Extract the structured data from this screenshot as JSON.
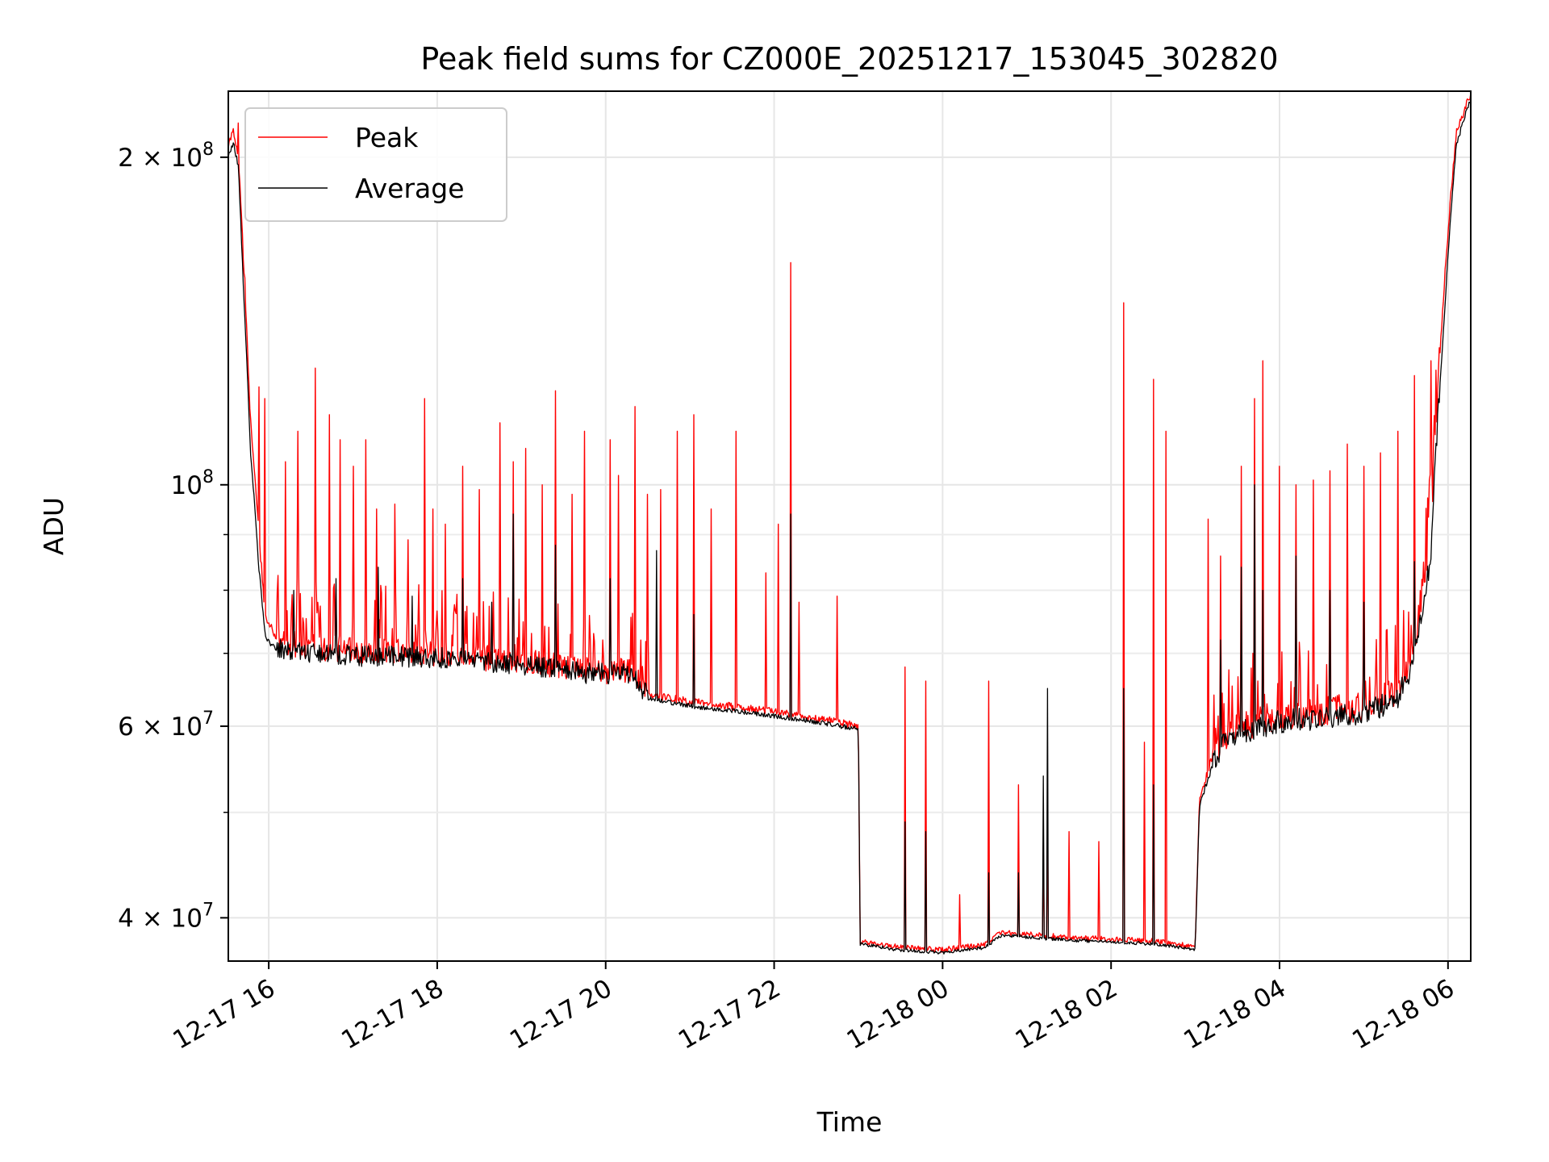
{
  "chart_data": {
    "type": "line",
    "title": "Peak field sums for CZ000E_20251217_153045_302820",
    "xlabel": "Time",
    "ylabel": "ADU",
    "yscale": "log",
    "ylim": [
      36500000,
      230000000
    ],
    "xlim_hours": [
      -0.48,
      14.27
    ],
    "grid": true,
    "legend_position": "upper-left",
    "x_ticks": [
      {
        "hour": 0,
        "label": "12-17 16"
      },
      {
        "hour": 2,
        "label": "12-17 18"
      },
      {
        "hour": 4,
        "label": "12-17 20"
      },
      {
        "hour": 6,
        "label": "12-17 22"
      },
      {
        "hour": 8,
        "label": "12-18 00"
      },
      {
        "hour": 10,
        "label": "12-18 02"
      },
      {
        "hour": 12,
        "label": "12-18 04"
      },
      {
        "hour": 14,
        "label": "12-18 06"
      }
    ],
    "y_major_ticks": [
      {
        "value": 40000000,
        "base": "4 × 10",
        "exp": "7"
      },
      {
        "value": 60000000,
        "base": "6 × 10",
        "exp": "7"
      },
      {
        "value": 100000000,
        "base": "10",
        "exp": "8"
      },
      {
        "value": 200000000,
        "base": "2 × 10",
        "exp": "8"
      }
    ],
    "y_minor_ticks": [
      50000000,
      70000000,
      80000000,
      90000000
    ],
    "series": [
      {
        "name": "Peak",
        "color": "#ff0000",
        "baseline": [
          [
            -0.48,
            205000000
          ],
          [
            -0.42,
            210000000
          ],
          [
            -0.36,
            200000000
          ],
          [
            -0.3,
            160000000
          ],
          [
            -0.22,
            115000000
          ],
          [
            -0.12,
            90000000
          ],
          [
            -0.04,
            75000000
          ],
          [
            0.15,
            71000000
          ],
          [
            1.0,
            70000000
          ],
          [
            2.0,
            69500000
          ],
          [
            3.0,
            68500000
          ],
          [
            3.8,
            67000000
          ],
          [
            4.3,
            67000000
          ],
          [
            4.5,
            64000000
          ],
          [
            5.0,
            63000000
          ],
          [
            5.8,
            62000000
          ],
          [
            6.4,
            61000000
          ],
          [
            6.95,
            60000000
          ],
          [
            7.0,
            59800000
          ],
          [
            7.02,
            38000000
          ],
          [
            7.5,
            37500000
          ],
          [
            8.0,
            37300000
          ],
          [
            8.5,
            37700000
          ],
          [
            8.7,
            38700000
          ],
          [
            9.5,
            38300000
          ],
          [
            10.5,
            38000000
          ],
          [
            10.95,
            37600000
          ],
          [
            11.0,
            37500000
          ],
          [
            11.05,
            51000000
          ],
          [
            11.2,
            56000000
          ],
          [
            11.4,
            59000000
          ],
          [
            12.0,
            61000000
          ],
          [
            13.0,
            62000000
          ],
          [
            13.4,
            64000000
          ],
          [
            13.6,
            70000000
          ],
          [
            13.8,
            90000000
          ],
          [
            13.95,
            150000000
          ],
          [
            14.1,
            210000000
          ],
          [
            14.27,
            228000000
          ]
        ],
        "spikes": [
          [
            -0.36,
            215000000
          ],
          [
            -0.28,
            155000000
          ],
          [
            -0.25,
            128000000
          ],
          [
            -0.12,
            123000000
          ],
          [
            -0.05,
            120000000
          ],
          [
            0.2,
            105000000
          ],
          [
            0.35,
            112000000
          ],
          [
            0.55,
            128000000
          ],
          [
            0.72,
            116000000
          ],
          [
            0.85,
            110000000
          ],
          [
            1.0,
            104000000
          ],
          [
            1.15,
            110000000
          ],
          [
            1.28,
            95000000
          ],
          [
            1.5,
            96000000
          ],
          [
            1.65,
            89000000
          ],
          [
            1.85,
            120000000
          ],
          [
            1.95,
            95000000
          ],
          [
            2.1,
            92000000
          ],
          [
            2.3,
            104000000
          ],
          [
            2.5,
            99000000
          ],
          [
            2.75,
            114000000
          ],
          [
            2.9,
            105000000
          ],
          [
            3.05,
            108000000
          ],
          [
            3.25,
            100000000
          ],
          [
            3.4,
            122000000
          ],
          [
            3.6,
            98000000
          ],
          [
            3.75,
            112000000
          ],
          [
            4.05,
            110000000
          ],
          [
            4.15,
            102000000
          ],
          [
            4.35,
            118000000
          ],
          [
            4.5,
            98000000
          ],
          [
            4.65,
            99000000
          ],
          [
            4.85,
            112000000
          ],
          [
            5.05,
            116000000
          ],
          [
            5.25,
            95000000
          ],
          [
            5.55,
            112000000
          ],
          [
            5.9,
            83000000
          ],
          [
            6.05,
            92000000
          ],
          [
            6.2,
            160000000
          ],
          [
            6.3,
            78000000
          ],
          [
            6.75,
            79000000
          ],
          [
            7.55,
            68000000
          ],
          [
            7.8,
            66000000
          ],
          [
            8.2,
            42000000
          ],
          [
            8.55,
            66000000
          ],
          [
            8.9,
            53000000
          ],
          [
            9.25,
            50000000
          ],
          [
            9.2,
            47000000
          ],
          [
            9.5,
            48000000
          ],
          [
            9.85,
            47000000
          ],
          [
            10.15,
            147000000
          ],
          [
            10.4,
            58000000
          ],
          [
            10.5,
            125000000
          ],
          [
            10.65,
            112000000
          ],
          [
            11.15,
            93000000
          ],
          [
            11.3,
            86000000
          ],
          [
            11.55,
            104000000
          ],
          [
            11.7,
            120000000
          ],
          [
            11.8,
            130000000
          ],
          [
            12.0,
            104000000
          ],
          [
            12.2,
            100000000
          ],
          [
            12.4,
            101000000
          ],
          [
            12.6,
            103000000
          ],
          [
            12.8,
            109000000
          ],
          [
            13.0,
            104000000
          ],
          [
            13.2,
            107000000
          ],
          [
            13.4,
            112000000
          ],
          [
            13.6,
            126000000
          ],
          [
            13.8,
            130000000
          ]
        ]
      },
      {
        "name": "Average",
        "color": "#000000",
        "baseline": [
          [
            -0.48,
            200000000
          ],
          [
            -0.42,
            206000000
          ],
          [
            -0.36,
            195000000
          ],
          [
            -0.3,
            150000000
          ],
          [
            -0.22,
            108000000
          ],
          [
            -0.12,
            84000000
          ],
          [
            -0.04,
            72000000
          ],
          [
            0.15,
            70000000
          ],
          [
            1.0,
            69000000
          ],
          [
            2.0,
            68800000
          ],
          [
            3.0,
            67800000
          ],
          [
            3.8,
            66500000
          ],
          [
            4.3,
            66500000
          ],
          [
            4.5,
            63500000
          ],
          [
            5.0,
            62500000
          ],
          [
            5.8,
            61500000
          ],
          [
            6.4,
            60600000
          ],
          [
            6.95,
            59600000
          ],
          [
            7.0,
            59500000
          ],
          [
            7.02,
            37800000
          ],
          [
            7.5,
            37300000
          ],
          [
            8.0,
            37100000
          ],
          [
            8.5,
            37500000
          ],
          [
            8.7,
            38500000
          ],
          [
            9.5,
            38100000
          ],
          [
            10.5,
            37800000
          ],
          [
            10.95,
            37400000
          ],
          [
            11.0,
            37300000
          ],
          [
            11.05,
            50500000
          ],
          [
            11.2,
            55000000
          ],
          [
            11.4,
            58200000
          ],
          [
            12.0,
            60000000
          ],
          [
            13.0,
            61000000
          ],
          [
            13.4,
            63000000
          ],
          [
            13.6,
            68000000
          ],
          [
            13.8,
            85000000
          ],
          [
            13.95,
            140000000
          ],
          [
            14.1,
            205000000
          ],
          [
            14.27,
            226000000
          ]
        ],
        "spikes": [
          [
            -0.28,
            130000000
          ],
          [
            0.3,
            80000000
          ],
          [
            0.8,
            82000000
          ],
          [
            1.3,
            84000000
          ],
          [
            1.7,
            79000000
          ],
          [
            2.3,
            82000000
          ],
          [
            2.65,
            78000000
          ],
          [
            2.9,
            94000000
          ],
          [
            3.4,
            88000000
          ],
          [
            4.05,
            82000000
          ],
          [
            4.6,
            87000000
          ],
          [
            5.05,
            76000000
          ],
          [
            6.2,
            94000000
          ],
          [
            7.55,
            49000000
          ],
          [
            7.8,
            48000000
          ],
          [
            8.55,
            44000000
          ],
          [
            8.9,
            44000000
          ],
          [
            9.2,
            54000000
          ],
          [
            9.25,
            65000000
          ],
          [
            10.15,
            65000000
          ],
          [
            10.5,
            53000000
          ],
          [
            11.3,
            72000000
          ],
          [
            11.55,
            84000000
          ],
          [
            11.7,
            100000000
          ],
          [
            11.8,
            80000000
          ],
          [
            12.2,
            86000000
          ],
          [
            12.6,
            80000000
          ],
          [
            13.0,
            78000000
          ],
          [
            13.6,
            85000000
          ]
        ]
      }
    ]
  }
}
